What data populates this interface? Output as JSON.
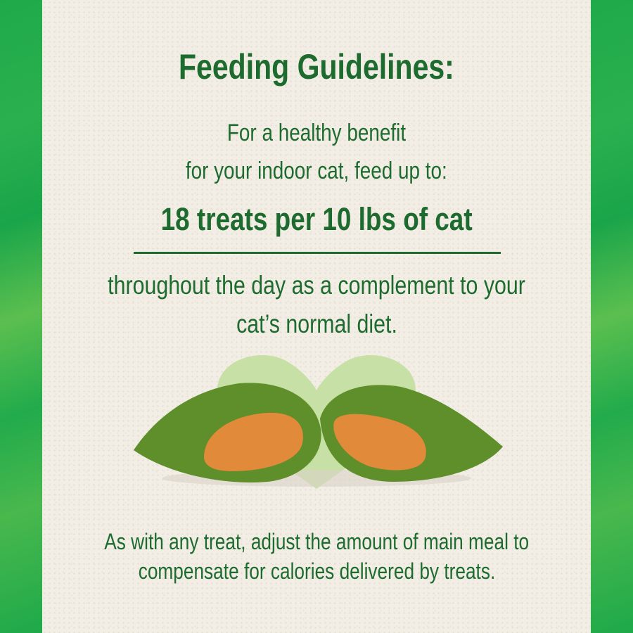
{
  "title": "Feeding Guidelines:",
  "intro_line1": "For a healthy benefit",
  "intro_line2": "for your indoor cat, feed up to:",
  "dosage": "18 treats per 10 lbs of cat",
  "detail_line1": "throughout the day as a complement to your",
  "detail_line2": "cat’s normal diet.",
  "note_line1": "As with any treat, adjust the amount of main meal to",
  "note_line2": "compensate for calories delivered by treats.",
  "colors": {
    "text": "#1d6b2e",
    "border": "#1faa4a",
    "heart": "#c7e0a6"
  }
}
